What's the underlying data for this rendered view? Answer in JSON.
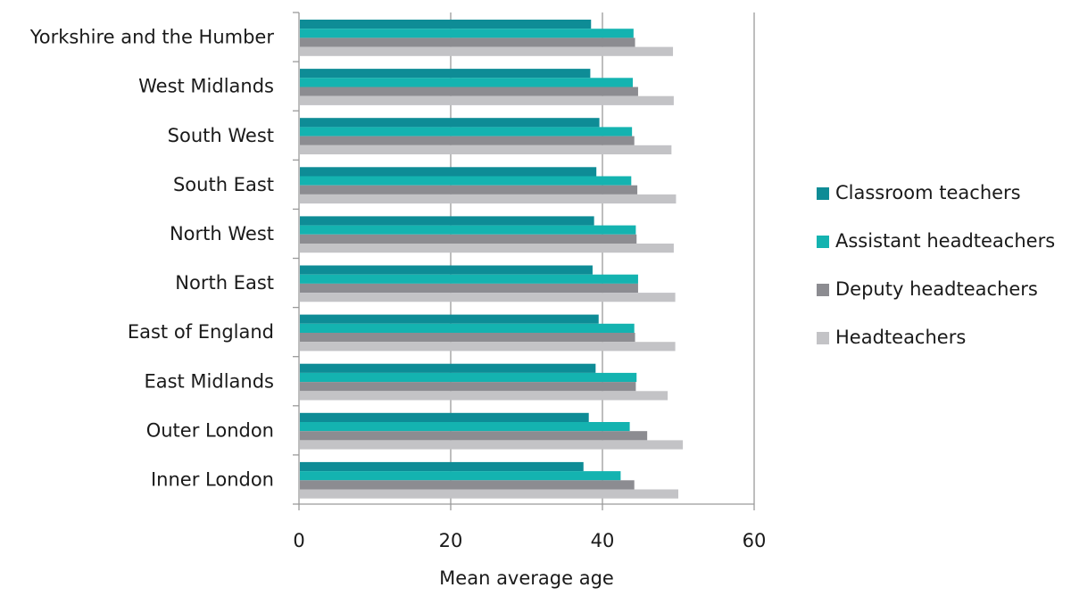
{
  "chart_data": {
    "type": "bar",
    "orientation": "horizontal",
    "categories": [
      "Yorkshire and the Humber",
      "West Midlands",
      "South West",
      "South East",
      "North West",
      "North East",
      "East of England",
      "East Midlands",
      "Outer London",
      "Inner London"
    ],
    "series": [
      {
        "name": "Classroom teachers",
        "color": "#0e8c96",
        "values": [
          38.5,
          38.4,
          39.6,
          39.2,
          38.9,
          38.7,
          39.5,
          39.1,
          38.2,
          37.5
        ]
      },
      {
        "name": "Assistant headteachers",
        "color": "#14b3b0",
        "values": [
          44.1,
          44.0,
          43.9,
          43.8,
          44.4,
          44.7,
          44.2,
          44.5,
          43.6,
          42.4
        ]
      },
      {
        "name": "Deputy headteachers",
        "color": "#8c8c91",
        "values": [
          44.3,
          44.7,
          44.2,
          44.6,
          44.5,
          44.7,
          44.3,
          44.4,
          45.9,
          44.2
        ]
      },
      {
        "name": "Headteachers",
        "color": "#c3c3c6",
        "values": [
          49.3,
          49.4,
          49.1,
          49.7,
          49.4,
          49.6,
          49.6,
          48.6,
          50.6,
          50.0
        ]
      }
    ],
    "xlabel": "Mean average age",
    "ylabel": "",
    "title": "",
    "xlim": [
      0,
      60
    ],
    "x_ticks": [
      0,
      20,
      40,
      60
    ],
    "grid": "vertical",
    "legend_position": "right"
  }
}
